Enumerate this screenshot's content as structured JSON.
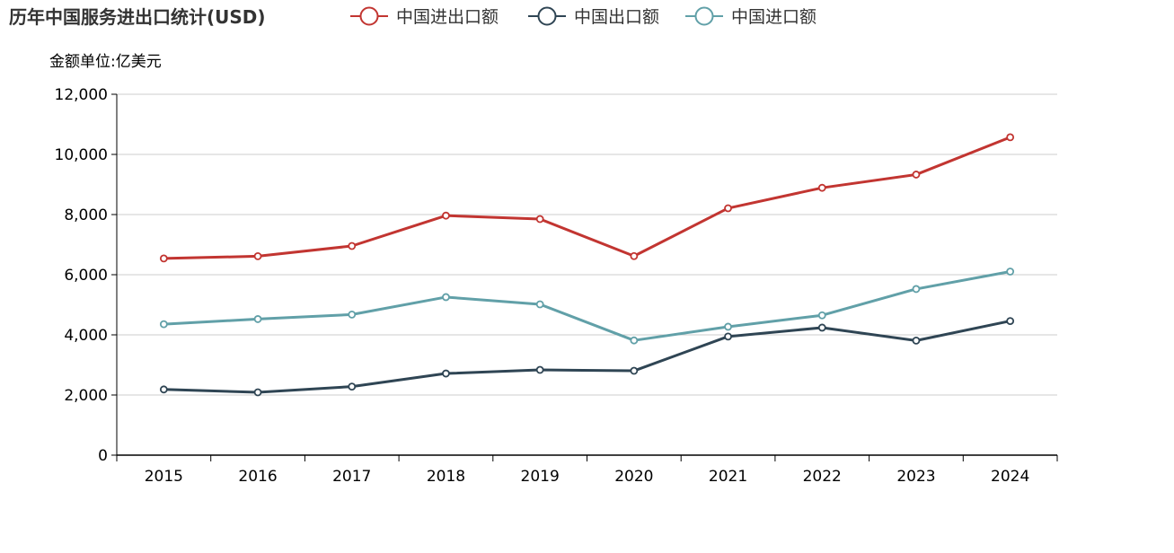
{
  "chart_data": {
    "type": "line",
    "title": "历年中国服务进出口统计(USD)",
    "ylabel": "金额单位:亿美元",
    "xlabel": "",
    "categories": [
      "2015",
      "2016",
      "2017",
      "2018",
      "2019",
      "2020",
      "2021",
      "2022",
      "2023",
      "2024"
    ],
    "ylim": [
      0,
      12000
    ],
    "yticks": [
      0,
      2000,
      4000,
      6000,
      8000,
      10000,
      12000
    ],
    "ytick_labels": [
      "0",
      "2,000",
      "4,000",
      "6,000",
      "8,000",
      "10,000",
      "12,000"
    ],
    "grid": true,
    "legend_position": "top",
    "series": [
      {
        "name": "中国进出口额",
        "color": "#c23531",
        "values": [
          6540,
          6615,
          6955,
          7965,
          7850,
          6620,
          8210,
          8890,
          9330,
          10570
        ]
      },
      {
        "name": "中国出口额",
        "color": "#2f4554",
        "values": [
          2185,
          2090,
          2280,
          2715,
          2835,
          2805,
          3945,
          4240,
          3810,
          4460
        ]
      },
      {
        "name": "中国进口额",
        "color": "#61a0a8",
        "values": [
          4355,
          4525,
          4675,
          5255,
          5015,
          3815,
          4270,
          4650,
          5525,
          6105
        ]
      }
    ]
  }
}
